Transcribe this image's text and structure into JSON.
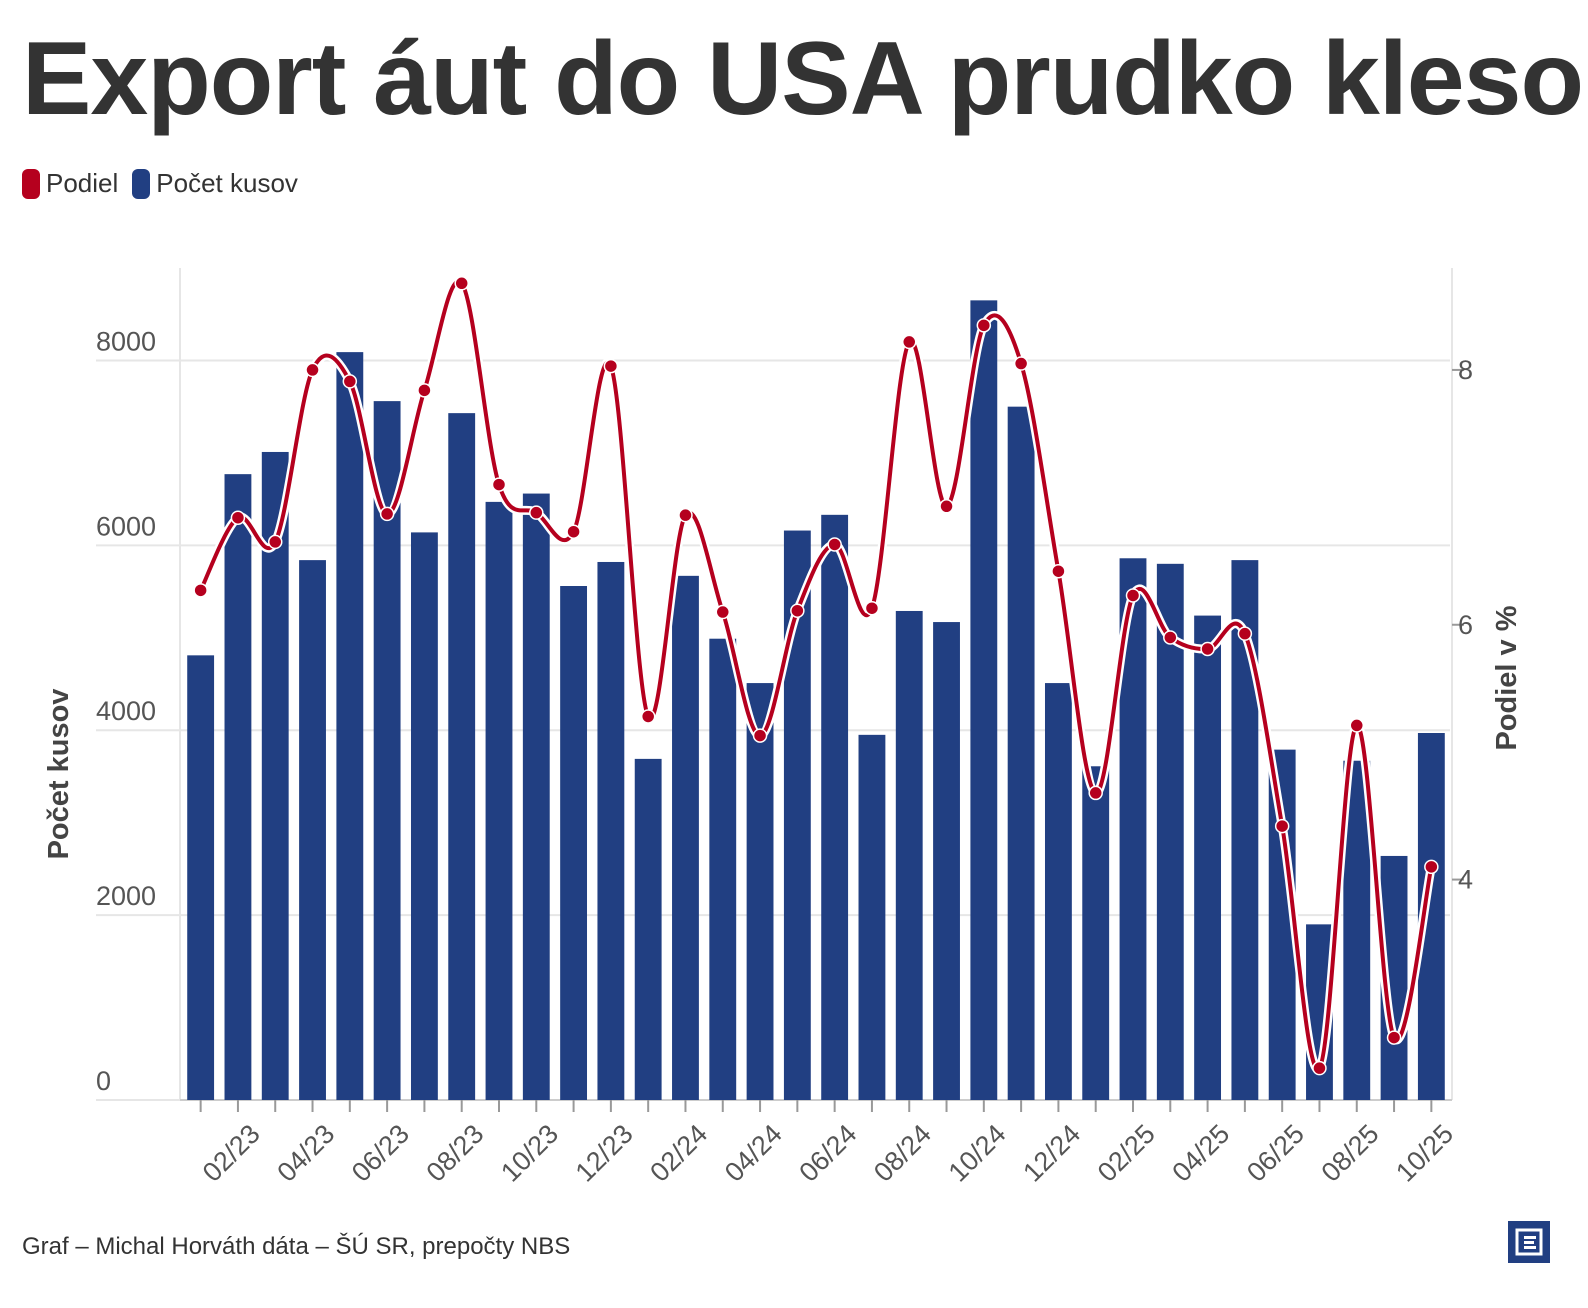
{
  "colors": {
    "bars": "#213f82",
    "line": "#b5001e",
    "grid": "#e6e6e6",
    "text": "#333333"
  },
  "chart_data": {
    "type": "bar",
    "title": "Export áut do USA prudko klesol",
    "legend": [
      {
        "name": "Podiel",
        "color": "#b5001e"
      },
      {
        "name": "Počet kusov",
        "color": "#213f82"
      }
    ],
    "legend_placement": "top-left",
    "grid": true,
    "categories": [
      "01/23",
      "02/23",
      "03/23",
      "04/23",
      "05/23",
      "06/23",
      "07/23",
      "08/23",
      "09/23",
      "10/23",
      "11/23",
      "12/23",
      "01/24",
      "02/24",
      "03/24",
      "04/24",
      "05/24",
      "06/24",
      "07/24",
      "08/24",
      "09/24",
      "10/24",
      "11/24",
      "12/24",
      "01/25",
      "02/25",
      "03/25",
      "04/25",
      "05/25",
      "06/25",
      "07/25",
      "08/25",
      "09/25",
      "10/25"
    ],
    "x_tick_labels": [
      "02/23",
      "04/23",
      "06/23",
      "08/23",
      "10/23",
      "12/23",
      "02/24",
      "04/24",
      "06/24",
      "08/24",
      "10/24",
      "12/24",
      "02/25",
      "04/25",
      "06/25",
      "08/25",
      "10/25"
    ],
    "y_left": {
      "label": "Počet kusov",
      "ticks": [
        0,
        2000,
        4000,
        6000,
        8000
      ],
      "range": [
        0,
        9000
      ]
    },
    "y_right": {
      "label": "Podiel v %",
      "ticks": [
        4,
        6,
        8
      ],
      "range": [
        2.27,
        8.8
      ]
    },
    "series": [
      {
        "name": "Počet kusov",
        "type": "bar",
        "axis": "left",
        "values": [
          4810,
          6770,
          7010,
          5840,
          8090,
          7560,
          6140,
          7430,
          6470,
          6560,
          5560,
          5820,
          3690,
          5670,
          4990,
          4510,
          6160,
          6330,
          3950,
          5290,
          5170,
          8650,
          7500,
          4510,
          3610,
          5860,
          5800,
          5240,
          5840,
          3790,
          1900,
          3670,
          2640,
          3970
        ]
      },
      {
        "name": "Podiel",
        "type": "line",
        "axis": "right",
        "values": [
          6.27,
          6.84,
          6.65,
          8.0,
          7.91,
          6.87,
          7.84,
          8.68,
          7.1,
          6.88,
          6.73,
          8.03,
          5.28,
          6.86,
          6.1,
          5.13,
          6.11,
          6.63,
          6.13,
          8.22,
          6.93,
          8.35,
          8.05,
          6.42,
          4.68,
          6.23,
          5.9,
          5.81,
          5.93,
          4.42,
          2.52,
          5.21,
          2.76,
          4.1
        ]
      }
    ]
  },
  "footer": {
    "credit": "Graf – Michal Horváth dáta – ŠÚ SR, prepočty NBS"
  },
  "logo": {
    "name": "e-logo-icon"
  }
}
